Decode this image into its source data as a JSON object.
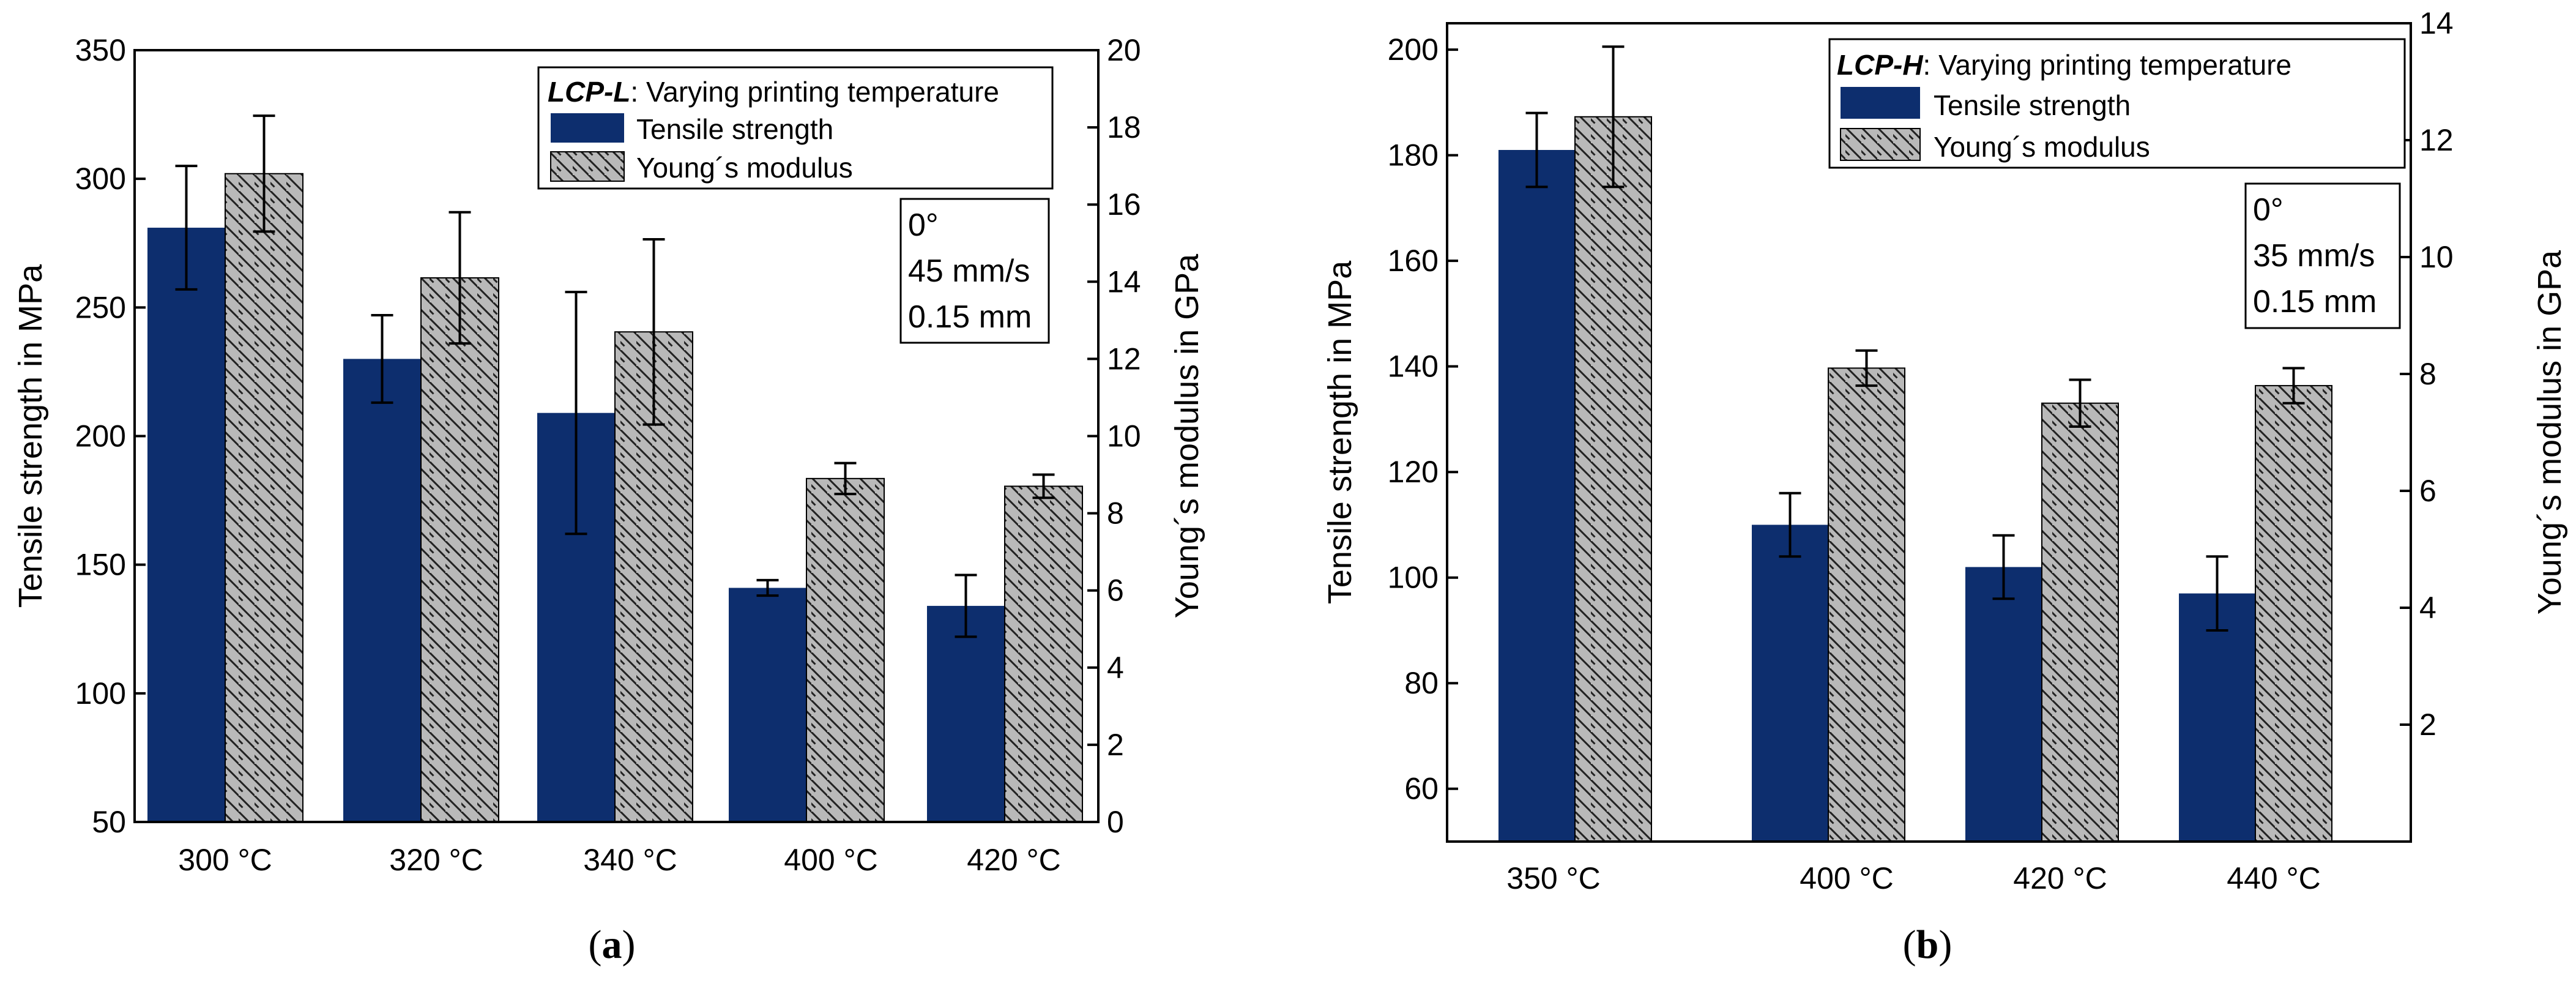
{
  "colors": {
    "tensile": "#0d2e6e",
    "modulus_fill": "#b9b9b9",
    "hatch": "#222222",
    "axis": "#000000"
  },
  "chart_data": [
    {
      "type": "bar",
      "caption_letter": "a",
      "legend": {
        "title_bold": "LCP-L",
        "title_rest": ": Varying printing temperature",
        "entries": [
          "Tensile strength",
          "Young´s modulus"
        ]
      },
      "info_lines": [
        "0°",
        "45 mm/s",
        "0.15 mm"
      ],
      "categories": [
        "300 °C",
        "320 °C",
        "340 °C",
        "400 °C",
        "420 °C"
      ],
      "ylabel": "Tensile strength in MPa",
      "y2label": "Young´s modulus in GPa",
      "ylim": [
        50,
        350
      ],
      "y_ticks": [
        50,
        100,
        150,
        200,
        250,
        300,
        350
      ],
      "y2lim": [
        0,
        20
      ],
      "y2_ticks": [
        0,
        2,
        4,
        6,
        8,
        10,
        12,
        14,
        16,
        18,
        20
      ],
      "series": [
        {
          "name": "Tensile strength",
          "axis": "left",
          "values": [
            281,
            230,
            209,
            141,
            134
          ],
          "errors": [
            24,
            17,
            47,
            3,
            12
          ]
        },
        {
          "name": "Young´s modulus",
          "axis": "right",
          "values": [
            16.8,
            14.1,
            12.7,
            8.9,
            8.7
          ],
          "errors": [
            1.5,
            1.7,
            2.4,
            0.4,
            0.3
          ]
        }
      ]
    },
    {
      "type": "bar",
      "caption_letter": "b",
      "legend": {
        "title_bold": "LCP-H",
        "title_rest": ": Varying printing temperature",
        "entries": [
          "Tensile strength",
          "Young´s modulus"
        ]
      },
      "info_lines": [
        "0°",
        "35 mm/s",
        "0.15 mm"
      ],
      "categories": [
        "350 °C",
        "400 °C",
        "420 °C",
        "440 °C"
      ],
      "ylabel": "Tensile strength in MPa",
      "y2label": "Young´s modulus in GPa",
      "ylim": [
        50,
        205
      ],
      "y_ticks": [
        60,
        80,
        100,
        120,
        140,
        160,
        180,
        200
      ],
      "y2lim": [
        0,
        14
      ],
      "y2_ticks": [
        2,
        4,
        6,
        8,
        10,
        12,
        14
      ],
      "series": [
        {
          "name": "Tensile strength",
          "axis": "left",
          "values": [
            181,
            110,
            102,
            97
          ],
          "errors": [
            7,
            6,
            6,
            7
          ]
        },
        {
          "name": "Young´s modulus",
          "axis": "right",
          "values": [
            12.4,
            8.1,
            7.5,
            7.8
          ],
          "errors": [
            1.2,
            0.3,
            0.4,
            0.3
          ]
        }
      ]
    }
  ]
}
